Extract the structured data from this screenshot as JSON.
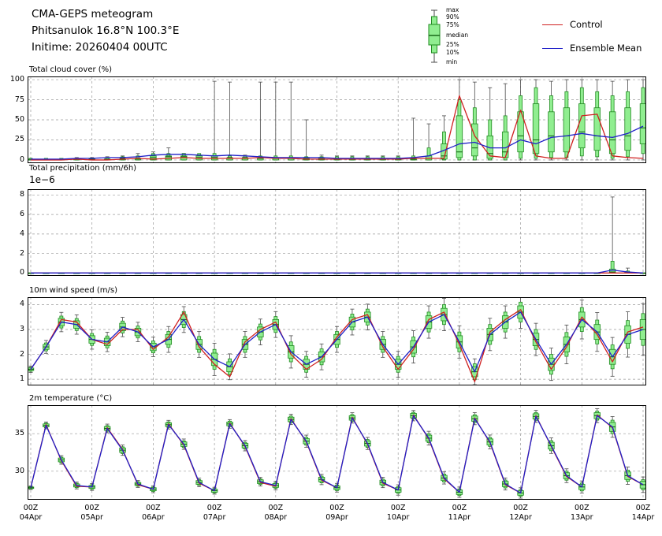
{
  "header": {
    "line1": "CMA-GEPS meteogram",
    "line2": "Phitsanulok 16.8°N 100.3°E",
    "line3": "Initime: 20260404 00UTC"
  },
  "legend": {
    "box_labels": [
      "max",
      "90%",
      "75%",
      "median",
      "25%",
      "10%",
      "min"
    ],
    "lines": [
      {
        "label": "Control",
        "color": "#cf2020"
      },
      {
        "label": "Ensemble Mean",
        "color": "#2020c8"
      }
    ]
  },
  "colors": {
    "control": "#cf2020",
    "ensemble": "#2020c8",
    "box_fill": "#90ee90",
    "box_edge": "#228b22",
    "box_median": "#0f5f0f",
    "whisker": "#4a4a4a",
    "grid": "#9a9a9a"
  },
  "xticks": [
    {
      "z": "00Z",
      "d": "04Apr"
    },
    {
      "z": "00Z",
      "d": "05Apr"
    },
    {
      "z": "00Z",
      "d": "06Apr"
    },
    {
      "z": "00Z",
      "d": "07Apr"
    },
    {
      "z": "00Z",
      "d": "08Apr"
    },
    {
      "z": "00Z",
      "d": "09Apr"
    },
    {
      "z": "00Z",
      "d": "10Apr"
    },
    {
      "z": "00Z",
      "d": "11Apr"
    },
    {
      "z": "00Z",
      "d": "12Apr"
    },
    {
      "z": "00Z",
      "d": "13Apr"
    },
    {
      "z": "00Z",
      "d": "14Apr"
    }
  ],
  "chart_data": [
    {
      "type": "boxplot+line",
      "title": "Total cloud cover (%)",
      "ylim": [
        -4,
        104
      ],
      "yticks": [
        0,
        25,
        50,
        75,
        100
      ],
      "n_times": 41,
      "series": {
        "control": [
          0,
          0,
          0,
          1,
          0,
          0,
          1,
          2,
          1,
          2,
          3,
          2,
          2,
          2,
          2,
          3,
          2,
          2,
          1,
          1,
          1,
          1,
          1,
          1,
          1,
          2,
          2,
          2,
          80,
          30,
          5,
          3,
          62,
          5,
          2,
          2,
          55,
          57,
          5,
          3,
          2
        ],
        "ensemble_mean": [
          1,
          1,
          1,
          2,
          2,
          3,
          3,
          4,
          6,
          7,
          7,
          6,
          5,
          6,
          5,
          4,
          3,
          3,
          3,
          3,
          2,
          2,
          2,
          2,
          2,
          3,
          5,
          12,
          20,
          22,
          15,
          15,
          25,
          20,
          28,
          30,
          33,
          30,
          28,
          33,
          42
        ]
      },
      "boxes": {
        "min": [
          0,
          0,
          0,
          0,
          0,
          0,
          0,
          0,
          0,
          0,
          0,
          0,
          0,
          0,
          0,
          0,
          0,
          0,
          0,
          0,
          0,
          0,
          0,
          0,
          0,
          0,
          0,
          0,
          0,
          0,
          0,
          0,
          0,
          0,
          0,
          0,
          0,
          0,
          0,
          0,
          0
        ],
        "p10": [
          0,
          0,
          0,
          0,
          0,
          0,
          0,
          0,
          0,
          0,
          0,
          0,
          0,
          0,
          0,
          0,
          0,
          0,
          0,
          0,
          0,
          0,
          0,
          0,
          0,
          0,
          0,
          0,
          0,
          0,
          0,
          0,
          2,
          2,
          3,
          3,
          5,
          4,
          2,
          4,
          8
        ],
        "p25": [
          0,
          0,
          0,
          0,
          0,
          0,
          0,
          0,
          0,
          0,
          0,
          0,
          0,
          0,
          0,
          0,
          0,
          0,
          0,
          0,
          0,
          0,
          0,
          0,
          0,
          0,
          0,
          1,
          3,
          5,
          2,
          3,
          10,
          8,
          10,
          10,
          15,
          12,
          8,
          12,
          20
        ],
        "median": [
          0,
          0,
          0,
          1,
          1,
          1,
          2,
          2,
          3,
          4,
          4,
          3,
          3,
          3,
          3,
          2,
          2,
          2,
          1,
          1,
          1,
          1,
          1,
          1,
          1,
          1,
          2,
          5,
          10,
          15,
          8,
          10,
          30,
          25,
          30,
          30,
          35,
          30,
          25,
          30,
          40
        ],
        "p75": [
          1,
          1,
          1,
          1,
          1,
          1,
          1,
          1,
          5,
          5,
          5,
          5,
          5,
          2,
          2,
          2,
          2,
          2,
          2,
          2,
          2,
          2,
          2,
          2,
          2,
          2,
          5,
          20,
          55,
          45,
          30,
          35,
          60,
          70,
          60,
          65,
          70,
          65,
          60,
          65,
          70
        ],
        "p90": [
          2,
          2,
          2,
          2,
          2,
          3,
          4,
          5,
          8,
          8,
          8,
          8,
          8,
          5,
          5,
          5,
          5,
          5,
          4,
          4,
          4,
          4,
          4,
          4,
          4,
          5,
          15,
          35,
          75,
          65,
          50,
          55,
          80,
          90,
          80,
          85,
          90,
          85,
          80,
          85,
          90
        ],
        "max": [
          2,
          2,
          2,
          3,
          3,
          4,
          5,
          8,
          10,
          15,
          8,
          6,
          98,
          97,
          6,
          97,
          97,
          97,
          50,
          6,
          5,
          5,
          5,
          5,
          5,
          52,
          45,
          55,
          100,
          97,
          90,
          95,
          100,
          100,
          98,
          100,
          100,
          100,
          98,
          100,
          100
        ]
      }
    },
    {
      "type": "boxplot+line",
      "title": "Total precipitation (mm/6h)",
      "offset_label": "1e−6",
      "values_unit": "1e-6 mm/6h",
      "ylim": [
        -0.3,
        8.6
      ],
      "yticks": [
        0,
        2,
        4,
        6,
        8
      ],
      "n_times": 41,
      "series": {
        "control": [
          0,
          0,
          0,
          0,
          0,
          0,
          0,
          0,
          0,
          0,
          0,
          0,
          0,
          0,
          0,
          0,
          0,
          0,
          0,
          0,
          0,
          0,
          0,
          0,
          0,
          0,
          0,
          0,
          0,
          0,
          0,
          0,
          0,
          0,
          0,
          0,
          0,
          0,
          0,
          0,
          0
        ],
        "ensemble_mean": [
          0,
          0,
          0,
          0,
          0,
          0,
          0,
          0,
          0,
          0,
          0,
          0,
          0,
          0,
          0,
          0,
          0,
          0,
          0,
          0,
          0,
          0,
          0,
          0,
          0,
          0,
          0,
          0,
          0,
          0,
          0,
          0,
          0,
          0,
          0,
          0,
          0,
          0,
          0.3,
          0.1,
          0
        ]
      },
      "boxes": {
        "min": [
          0,
          0,
          0,
          0,
          0,
          0,
          0,
          0,
          0,
          0,
          0,
          0,
          0,
          0,
          0,
          0,
          0,
          0,
          0,
          0,
          0,
          0,
          0,
          0,
          0,
          0,
          0,
          0,
          0,
          0,
          0,
          0,
          0,
          0,
          0,
          0,
          0,
          0,
          0,
          0,
          0
        ],
        "p10": [
          0,
          0,
          0,
          0,
          0,
          0,
          0,
          0,
          0,
          0,
          0,
          0,
          0,
          0,
          0,
          0,
          0,
          0,
          0,
          0,
          0,
          0,
          0,
          0,
          0,
          0,
          0,
          0,
          0,
          0,
          0,
          0,
          0,
          0,
          0,
          0,
          0,
          0,
          0,
          0,
          0
        ],
        "p25": [
          0,
          0,
          0,
          0,
          0,
          0,
          0,
          0,
          0,
          0,
          0,
          0,
          0,
          0,
          0,
          0,
          0,
          0,
          0,
          0,
          0,
          0,
          0,
          0,
          0,
          0,
          0,
          0,
          0,
          0,
          0,
          0,
          0,
          0,
          0,
          0,
          0,
          0,
          0,
          0,
          0
        ],
        "median": [
          0,
          0,
          0,
          0,
          0,
          0,
          0,
          0,
          0,
          0,
          0,
          0,
          0,
          0,
          0,
          0,
          0,
          0,
          0,
          0,
          0,
          0,
          0,
          0,
          0,
          0,
          0,
          0,
          0,
          0,
          0,
          0,
          0,
          0,
          0,
          0,
          0,
          0,
          0.1,
          0,
          0
        ],
        "p75": [
          0,
          0,
          0,
          0,
          0,
          0,
          0,
          0,
          0,
          0,
          0,
          0,
          0,
          0,
          0,
          0,
          0,
          0,
          0,
          0,
          0,
          0,
          0,
          0,
          0,
          0,
          0,
          0,
          0,
          0,
          0,
          0,
          0,
          0,
          0,
          0,
          0,
          0,
          0.4,
          0.1,
          0
        ],
        "p90": [
          0,
          0,
          0,
          0,
          0,
          0,
          0,
          0,
          0,
          0,
          0,
          0,
          0,
          0,
          0,
          0,
          0,
          0,
          0,
          0,
          0,
          0,
          0,
          0,
          0,
          0,
          0,
          0,
          0,
          0,
          0,
          0,
          0,
          0,
          0,
          0,
          0,
          0,
          1.2,
          0.2,
          0
        ],
        "max": [
          0,
          0,
          0,
          0,
          0,
          0,
          0,
          0,
          0,
          0,
          0,
          0,
          0,
          0,
          0,
          0,
          0,
          0,
          0,
          0,
          0,
          0,
          0,
          0,
          0,
          0,
          0,
          0,
          0,
          0,
          0,
          0,
          0,
          0,
          0,
          0,
          0,
          0,
          7.8,
          0.5,
          0
        ]
      }
    },
    {
      "type": "boxplot+line",
      "title": "10m wind speed (m/s)",
      "ylim": [
        0.75,
        4.3
      ],
      "yticks": [
        1,
        2,
        3,
        4
      ],
      "n_times": 41,
      "series": {
        "control": [
          1.4,
          2.3,
          3.4,
          3.3,
          2.6,
          2.4,
          3.0,
          3.0,
          2.2,
          2.7,
          3.7,
          2.3,
          1.6,
          1.1,
          2.5,
          3.0,
          3.3,
          2.0,
          1.4,
          1.8,
          2.7,
          3.4,
          3.6,
          2.3,
          1.4,
          2.2,
          3.4,
          3.7,
          2.4,
          0.9,
          2.9,
          3.4,
          3.8,
          2.5,
          1.4,
          2.3,
          3.5,
          2.8,
          1.7,
          2.9,
          3.1
        ],
        "ensemble_mean": [
          1.4,
          2.3,
          3.3,
          3.2,
          2.6,
          2.5,
          3.1,
          2.9,
          2.3,
          2.6,
          3.4,
          2.4,
          1.8,
          1.5,
          2.4,
          2.9,
          3.2,
          2.1,
          1.6,
          1.9,
          2.6,
          3.3,
          3.5,
          2.4,
          1.6,
          2.3,
          3.3,
          3.6,
          2.5,
          1.3,
          2.8,
          3.3,
          3.7,
          2.6,
          1.6,
          2.4,
          3.4,
          2.9,
          1.9,
          2.8,
          3.0
        ]
      },
      "boxes": {
        "mode": "spread",
        "spread": [
          0.05,
          0.1,
          0.15,
          0.15,
          0.15,
          0.15,
          0.15,
          0.15,
          0.15,
          0.2,
          0.2,
          0.2,
          0.25,
          0.2,
          0.2,
          0.2,
          0.2,
          0.25,
          0.2,
          0.2,
          0.2,
          0.2,
          0.2,
          0.2,
          0.2,
          0.25,
          0.25,
          0.25,
          0.25,
          0.2,
          0.25,
          0.25,
          0.25,
          0.25,
          0.25,
          0.3,
          0.3,
          0.3,
          0.3,
          0.35,
          0.4
        ],
        "p_factor": 1.6,
        "w_factor": 2.6
      }
    },
    {
      "type": "boxplot+line",
      "title": "2m temperature (°C)",
      "ylim": [
        26.2,
        38.8
      ],
      "yticks": [
        30,
        35
      ],
      "n_times": 41,
      "series": {
        "control": [
          27.8,
          36.2,
          31.4,
          28.0,
          27.9,
          35.8,
          32.9,
          28.2,
          27.6,
          36.3,
          33.5,
          28.4,
          27.4,
          36.4,
          33.3,
          28.5,
          28.0,
          37.0,
          33.9,
          28.8,
          27.8,
          37.2,
          33.6,
          28.4,
          27.5,
          37.5,
          34.3,
          29.0,
          27.2,
          37.1,
          33.8,
          28.2,
          27.1,
          37.4,
          33.3,
          29.3,
          27.9,
          37.5,
          35.8,
          29.3,
          28.2
        ],
        "ensemble_mean": [
          27.8,
          36.1,
          31.5,
          28.1,
          27.9,
          35.7,
          32.8,
          28.3,
          27.6,
          36.2,
          33.6,
          28.5,
          27.4,
          36.3,
          33.4,
          28.6,
          28.1,
          36.9,
          34.0,
          28.9,
          27.8,
          37.1,
          33.7,
          28.5,
          27.5,
          37.4,
          34.4,
          29.1,
          27.2,
          37.0,
          33.9,
          28.3,
          27.1,
          37.3,
          33.4,
          29.4,
          27.9,
          37.4,
          35.9,
          29.4,
          28.2
        ]
      },
      "boxes": {
        "mode": "spread",
        "spread": [
          0.1,
          0.2,
          0.25,
          0.2,
          0.2,
          0.25,
          0.3,
          0.2,
          0.2,
          0.25,
          0.3,
          0.25,
          0.2,
          0.25,
          0.3,
          0.25,
          0.25,
          0.3,
          0.35,
          0.3,
          0.25,
          0.3,
          0.35,
          0.3,
          0.3,
          0.3,
          0.4,
          0.35,
          0.3,
          0.35,
          0.4,
          0.35,
          0.3,
          0.35,
          0.45,
          0.4,
          0.35,
          0.4,
          0.6,
          0.5,
          0.45
        ],
        "p_factor": 1.5,
        "w_factor": 2.3
      }
    }
  ]
}
